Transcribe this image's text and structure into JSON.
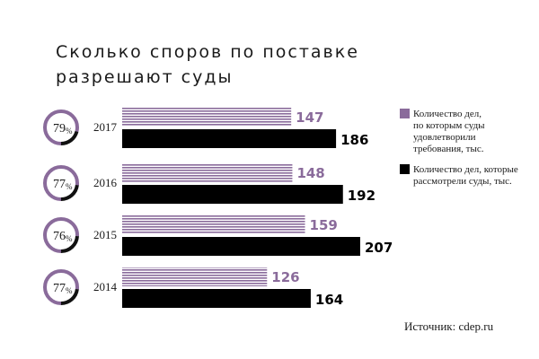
{
  "chart_data": {
    "type": "bar",
    "title_lines": [
      "Сколько споров по поставке",
      "разрешают суды"
    ],
    "categories": [
      "2017",
      "2016",
      "2015",
      "2014"
    ],
    "series": [
      {
        "name_lines": [
          "Количество дел,",
          "по которым суды",
          "удовлетворили",
          "требования, тыс."
        ],
        "values": [
          147,
          148,
          159,
          126
        ],
        "color": "#8a6b9b"
      },
      {
        "name_lines": [
          "Количество дел, которые",
          "рассмотрели суды, тыс."
        ],
        "values": [
          186,
          192,
          207,
          164
        ],
        "color": "#000000"
      }
    ],
    "percentages": [
      79,
      77,
      76,
      77
    ],
    "percent_symbol": "%",
    "legend_position": "right",
    "grid": false,
    "source": "Источник: cdep.ru"
  }
}
